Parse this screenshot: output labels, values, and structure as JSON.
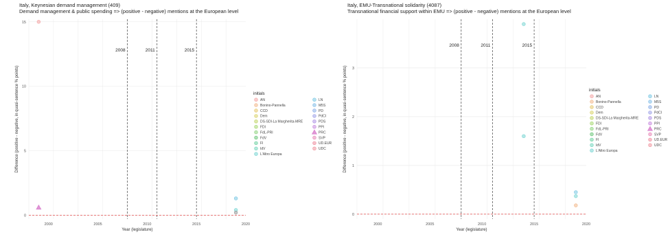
{
  "chart_data": [
    {
      "type": "scatter",
      "title": "Italy, Keynesian demand management (409)",
      "subtitle": "Demand management & public spending => (positive - negative) mentions at the European level",
      "xlabel": "Year (legislature)",
      "ylabel": "Difference (positive - negative, in quasi-sentence % points)",
      "xlim": [
        1998,
        2020
      ],
      "ylim": [
        -0.3,
        15.2
      ],
      "x_ticks": [
        "2000",
        "2005",
        "2010",
        "2015",
        "2020"
      ],
      "y_ticks": [
        "0",
        "5",
        "10",
        "15"
      ],
      "grid": true,
      "event_lines": [
        {
          "year": 2008,
          "label": "2008"
        },
        {
          "year": 2011,
          "label": "2011"
        },
        {
          "year": 2015,
          "label": "2015"
        }
      ],
      "reference_line_y": 0,
      "points": [
        {
          "party": "AN",
          "x": 1999,
          "y": 15
        },
        {
          "party": "PRC",
          "x": 1999,
          "y": 0.6
        },
        {
          "party": "LN",
          "x": 2019,
          "y": 1.3
        },
        {
          "party": "L'Altro Europa",
          "x": 2019,
          "y": 0.4
        },
        {
          "party": "FdI",
          "x": 2019,
          "y": 0.2
        }
      ]
    },
    {
      "type": "scatter",
      "title": "Italy, EMU-Transnational solidarity (4087)",
      "subtitle": "Transnational financial support within EMU => (positive - negative) mentions at the European level",
      "xlabel": "Year (legislature)",
      "ylabel": "Difference (positive - negative, in quasi-sentence % points)",
      "xlim": [
        1998,
        2020
      ],
      "ylim": [
        -0.1,
        4.0
      ],
      "x_ticks": [
        "2000",
        "2005",
        "2010",
        "2015",
        "2020"
      ],
      "y_ticks": [
        "0",
        "1",
        "2",
        "3"
      ],
      "grid": true,
      "event_lines": [
        {
          "year": 2008,
          "label": "2008"
        },
        {
          "year": 2011,
          "label": "2011"
        },
        {
          "year": 2015,
          "label": "2015"
        }
      ],
      "reference_line_y": 0,
      "points": [
        {
          "party": "L'Altro Europa",
          "x": 2014,
          "y": 3.9
        },
        {
          "party": "L'Altro Europa",
          "x": 2014,
          "y": 1.6
        },
        {
          "party": "LN",
          "x": 2019,
          "y": 0.45
        },
        {
          "party": "L'Altro Europa",
          "x": 2019,
          "y": 0.37
        },
        {
          "party": "Bonino-Pannella",
          "x": 2019,
          "y": 0.18
        }
      ]
    }
  ],
  "legend": {
    "title": "initials",
    "items": [
      {
        "label": "AN",
        "color": "#f4a6a6",
        "shape": "circle"
      },
      {
        "label": "Bonino-Pannella",
        "color": "#f2b88a",
        "shape": "circle"
      },
      {
        "label": "CCD",
        "color": "#e6c86e",
        "shape": "circle"
      },
      {
        "label": "Dem",
        "color": "#d9d36a",
        "shape": "circle"
      },
      {
        "label": "DS-SDI-La Margherita-MRE",
        "color": "#c2d66a",
        "shape": "circle"
      },
      {
        "label": "FDI",
        "color": "#a7d873",
        "shape": "circle"
      },
      {
        "label": "FdL-PRI",
        "color": "#8fd480",
        "shape": "circle"
      },
      {
        "label": "FdV",
        "color": "#6cc67a",
        "shape": "circle"
      },
      {
        "label": "FI",
        "color": "#6fd1a2",
        "shape": "circle"
      },
      {
        "label": "IdV",
        "color": "#79d7bf",
        "shape": "circle"
      },
      {
        "label": "L'Altro Europa",
        "color": "#7ad6d3",
        "shape": "circle"
      },
      {
        "label": "LN",
        "color": "#7cc9e4",
        "shape": "circle"
      },
      {
        "label": "M5S",
        "color": "#82bde8",
        "shape": "circle"
      },
      {
        "label": "PD",
        "color": "#8aaee8",
        "shape": "circle"
      },
      {
        "label": "PdCI",
        "color": "#9ca1e8",
        "shape": "circle"
      },
      {
        "label": "PDS",
        "color": "#b195e6",
        "shape": "circle"
      },
      {
        "label": "PPI",
        "color": "#c88ce0",
        "shape": "circle"
      },
      {
        "label": "PRC",
        "color": "#db86d0",
        "shape": "triangle"
      },
      {
        "label": "SVP",
        "color": "#e889b8",
        "shape": "circle"
      },
      {
        "label": "UD.EUR",
        "color": "#ef8e9f",
        "shape": "circle"
      },
      {
        "label": "UDC",
        "color": "#f197a0",
        "shape": "circle"
      }
    ]
  }
}
